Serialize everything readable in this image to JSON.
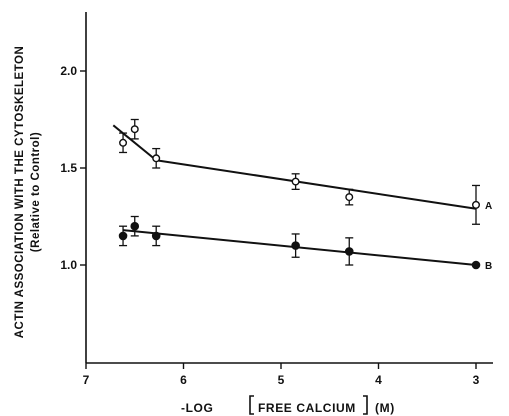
{
  "chart_data": {
    "type": "scatter",
    "title": "",
    "xlabel_prefix": "-LOG",
    "xlabel_core": "FREE CALCIUM",
    "xlabel_unit": "(M)",
    "ylabel_line1": "ACTIN ASSOCIATION WITH THE CYTOSKELETON",
    "ylabel_line2": "(Relative to Control)",
    "xlim": [
      7,
      3
    ],
    "ylim": [
      0.5,
      2.3
    ],
    "x_ticks": [
      7,
      6,
      5,
      4,
      3
    ],
    "x_tick_labels": [
      "7",
      "6",
      "5",
      "4",
      "3"
    ],
    "y_ticks": [
      1.0,
      1.5,
      2.0
    ],
    "y_tick_labels": [
      "1.0",
      "1.5",
      "2.0"
    ],
    "grid": false,
    "series": [
      {
        "name": "A",
        "marker": "open-circle",
        "points": [
          {
            "x": 6.62,
            "y": 1.63,
            "err": 0.05
          },
          {
            "x": 6.5,
            "y": 1.7,
            "err": 0.05
          },
          {
            "x": 6.28,
            "y": 1.55,
            "err": 0.05
          },
          {
            "x": 4.85,
            "y": 1.43,
            "err": 0.04
          },
          {
            "x": 4.3,
            "y": 1.35,
            "err": 0.04
          },
          {
            "x": 3.0,
            "y": 1.31,
            "err": 0.1
          }
        ],
        "fit_lines": [
          {
            "x": [
              6.72,
              6.28
            ],
            "y": [
              1.72,
              1.54
            ]
          },
          {
            "x": [
              6.28,
              3.0
            ],
            "y": [
              1.54,
              1.29
            ]
          }
        ]
      },
      {
        "name": "B",
        "marker": "filled-circle",
        "points": [
          {
            "x": 6.62,
            "y": 1.15,
            "err": 0.05
          },
          {
            "x": 6.5,
            "y": 1.2,
            "err": 0.05
          },
          {
            "x": 6.28,
            "y": 1.15,
            "err": 0.05
          },
          {
            "x": 4.85,
            "y": 1.1,
            "err": 0.06
          },
          {
            "x": 4.3,
            "y": 1.07,
            "err": 0.07
          },
          {
            "x": 3.0,
            "y": 1.0,
            "err": 0.0
          }
        ],
        "fit_lines": [
          {
            "x": [
              6.62,
              3.0
            ],
            "y": [
              1.18,
              1.0
            ]
          }
        ]
      }
    ]
  }
}
